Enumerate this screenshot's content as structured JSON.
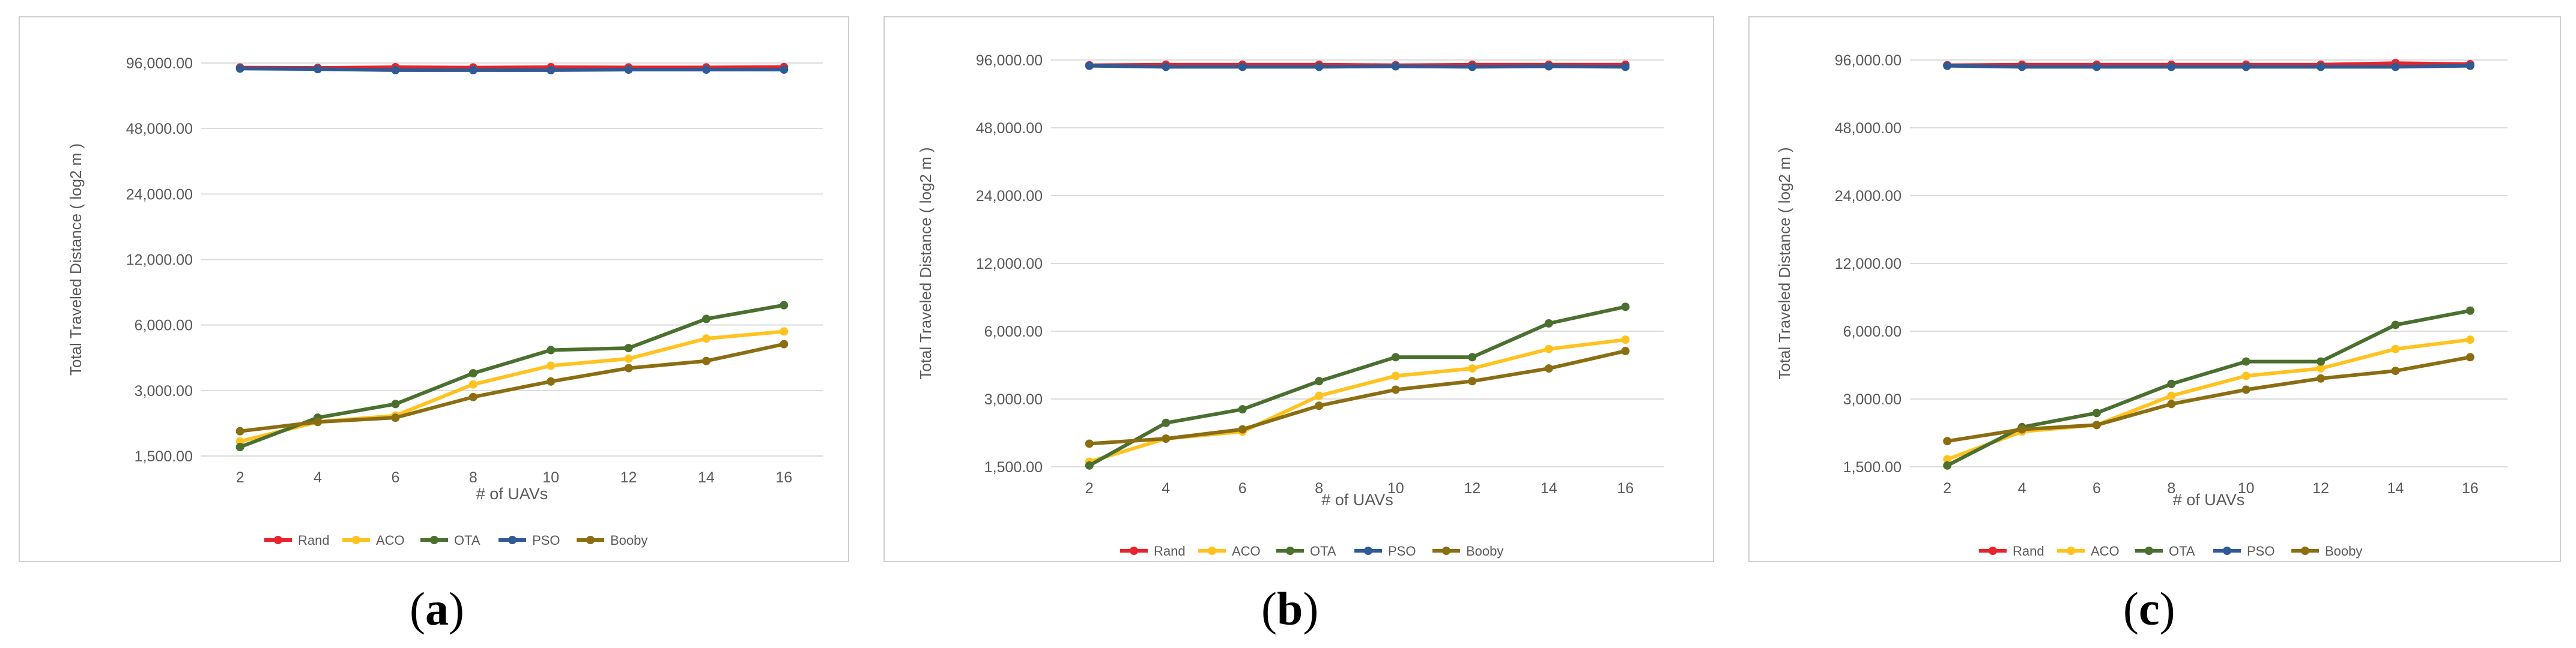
{
  "colors": {
    "Rand": "#e8232b",
    "ACO": "#ffc21f",
    "OTA": "#4a6f2e",
    "PSO": "#2f5a94",
    "Booby": "#8b6d12",
    "grid": "#dcdcdc",
    "frame": "#cfcfcf",
    "text": "#595959"
  },
  "chart_data": [
    {
      "panel": "a",
      "caption_open": "(",
      "caption_letter": "a",
      "caption_close": ")",
      "type": "line",
      "title": "",
      "ylabel": "Total Traveled Distance ( log2 m )",
      "xlabel": "# of UAVs",
      "yscale": "log2",
      "ylim": [
        1500,
        96000
      ],
      "yticks": [
        1500,
        3000,
        6000,
        12000,
        24000,
        48000,
        96000
      ],
      "ytick_labels": [
        "1,500.00",
        "3,000.00",
        "6,000.00",
        "12,000.00",
        "24,000.00",
        "48,000.00",
        "96,000.00"
      ],
      "categories": [
        "2",
        "4",
        "6",
        "8",
        "10",
        "12",
        "14",
        "16"
      ],
      "legend_position": "bottom",
      "series": [
        {
          "name": "Rand",
          "values": [
            91500,
            91200,
            91800,
            91500,
            91800,
            91600,
            91600,
            92000
          ]
        },
        {
          "name": "ACO",
          "values": [
            1750,
            2150,
            2300,
            3200,
            3900,
            4200,
            5200,
            5600
          ]
        },
        {
          "name": "OTA",
          "values": [
            1650,
            2250,
            2600,
            3600,
            4600,
            4700,
            6400,
            7400
          ]
        },
        {
          "name": "PSO",
          "values": [
            90500,
            90000,
            89000,
            89000,
            89000,
            89500,
            89500,
            89500
          ]
        },
        {
          "name": "Booby",
          "values": [
            1950,
            2150,
            2250,
            2800,
            3300,
            3800,
            4100,
            4900
          ]
        }
      ]
    },
    {
      "panel": "b",
      "caption_open": "(",
      "caption_letter": "b",
      "caption_close": ")",
      "type": "line",
      "title": "",
      "ylabel": "Total Traveled Distance ( log2 m )",
      "xlabel": "# of UAVs",
      "yscale": "log2",
      "ylim": [
        1500,
        96000
      ],
      "yticks": [
        1500,
        3000,
        6000,
        12000,
        24000,
        48000,
        96000
      ],
      "ytick_labels": [
        "1,500.00",
        "3,000.00",
        "6,000.00",
        "12,000.00",
        "24,000.00",
        "48,000.00",
        "96,000.00"
      ],
      "categories": [
        "2",
        "4",
        "6",
        "8",
        "10",
        "12",
        "14",
        "16"
      ],
      "legend_position": "bottom",
      "series": [
        {
          "name": "Rand",
          "values": [
            91000,
            91500,
            91500,
            91500,
            91000,
            91500,
            91500,
            91500
          ]
        },
        {
          "name": "ACO",
          "values": [
            1580,
            2000,
            2150,
            3100,
            3800,
            4100,
            5000,
            5500
          ]
        },
        {
          "name": "OTA",
          "values": [
            1520,
            2350,
            2700,
            3600,
            4600,
            4600,
            6500,
            7700
          ]
        },
        {
          "name": "PSO",
          "values": [
            90500,
            89500,
            89500,
            89500,
            90000,
            89500,
            90000,
            89500
          ]
        },
        {
          "name": "Booby",
          "values": [
            1900,
            2000,
            2200,
            2800,
            3300,
            3600,
            4100,
            4900
          ]
        }
      ]
    },
    {
      "panel": "c",
      "caption_open": "(",
      "caption_letter": "c",
      "caption_close": ")",
      "type": "line",
      "title": "",
      "ylabel": "Total Traveled Distance ( log2 m )",
      "xlabel": "# of UAVs",
      "yscale": "log2",
      "ylim": [
        1500,
        96000
      ],
      "yticks": [
        1500,
        3000,
        6000,
        12000,
        24000,
        48000,
        96000
      ],
      "ytick_labels": [
        "1,500.00",
        "3,000.00",
        "6,000.00",
        "12,000.00",
        "24,000.00",
        "48,000.00",
        "96,000.00"
      ],
      "categories": [
        "2",
        "4",
        "6",
        "8",
        "10",
        "12",
        "14",
        "16"
      ],
      "legend_position": "bottom",
      "series": [
        {
          "name": "Rand",
          "values": [
            91000,
            91500,
            91500,
            91500,
            91500,
            91500,
            93000,
            92000
          ]
        },
        {
          "name": "ACO",
          "values": [
            1620,
            2150,
            2300,
            3100,
            3800,
            4100,
            5000,
            5500
          ]
        },
        {
          "name": "OTA",
          "values": [
            1520,
            2250,
            2600,
            3500,
            4400,
            4400,
            6400,
            7400
          ]
        },
        {
          "name": "PSO",
          "values": [
            90500,
            89500,
            89500,
            89500,
            89500,
            89500,
            89500,
            90500
          ]
        },
        {
          "name": "Booby",
          "values": [
            1950,
            2200,
            2300,
            2850,
            3300,
            3700,
            4000,
            4600
          ]
        }
      ]
    }
  ]
}
